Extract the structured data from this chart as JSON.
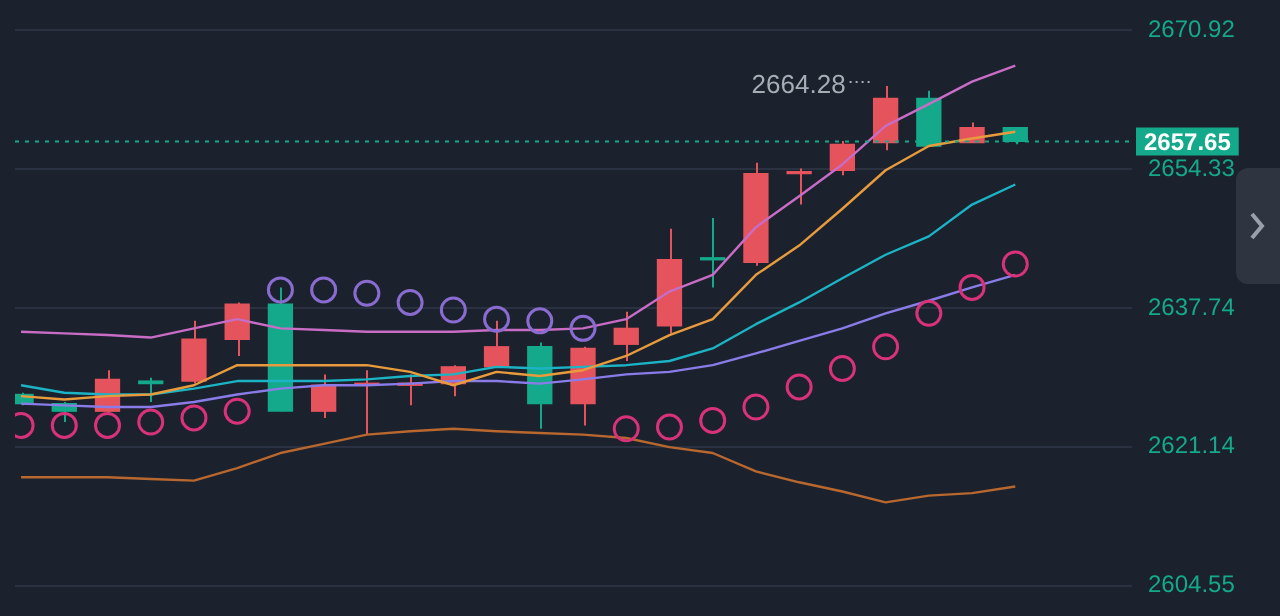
{
  "chart_data": {
    "type": "candlestick",
    "categories": [
      null,
      null,
      null,
      null,
      null,
      null,
      null,
      null,
      null,
      null,
      null,
      null,
      null,
      null,
      null,
      null,
      null,
      null,
      null,
      null,
      null,
      null,
      null,
      null
    ],
    "ohlc": [
      [
        2627.4,
        2627.6,
        2626.1,
        2626.3
      ],
      [
        2626.3,
        2626.5,
        2624.1,
        2625.4
      ],
      [
        2625.4,
        2630.3,
        2625.2,
        2629.2
      ],
      [
        2629.0,
        2629.4,
        2626.5,
        2628.7
      ],
      [
        2629.0,
        2636.2,
        2628.7,
        2634.0
      ],
      [
        2634.0,
        2638.4,
        2632.0,
        2638.2
      ],
      [
        2638.2,
        2640.2,
        2625.4,
        2625.4
      ],
      [
        2625.4,
        2629.8,
        2624.6,
        2628.5
      ],
      [
        2628.5,
        2630.3,
        2622.6,
        2628.7
      ],
      [
        2628.5,
        2629.8,
        2626.1,
        2628.7
      ],
      [
        2628.7,
        2630.9,
        2627.2,
        2630.7
      ],
      [
        2630.7,
        2636.2,
        2630.7,
        2633.1
      ],
      [
        2633.1,
        2633.6,
        2623.3,
        2626.3
      ],
      [
        2626.3,
        2633.1,
        2623.7,
        2632.9
      ],
      [
        2633.4,
        2637.3,
        2631.4,
        2635.3
      ],
      [
        2635.6,
        2647.2,
        2634.7,
        2643.5
      ],
      [
        2643.7,
        2648.5,
        2640.2,
        2643.5
      ],
      [
        2643.2,
        2655.1,
        2642.8,
        2653.8
      ],
      [
        2653.8,
        2654.4,
        2650.1,
        2654.0
      ],
      [
        2654.2,
        2657.7,
        2653.6,
        2657.3
      ],
      [
        2657.5,
        2664.28,
        2656.6,
        2662.8
      ],
      [
        2662.8,
        2663.7,
        2657.1,
        2657.1
      ],
      [
        2657.5,
        2659.9,
        2657.5,
        2659.3
      ],
      [
        2659.3,
        2659.3,
        2657.3,
        2657.65
      ]
    ],
    "colors": [
      "#14a98a",
      "#14a98a",
      "#e5535d",
      "#14a98a",
      "#e5535d",
      "#e5535d",
      "#14a98a",
      "#e5535d",
      "#e5535d",
      "#e5535d",
      "#e5535d",
      "#e5535d",
      "#14a98a",
      "#e5535d",
      "#e5535d",
      "#e5535d",
      "#14a98a",
      "#e5535d",
      "#e5535d",
      "#e5535d",
      "#e5535d",
      "#14a98a",
      "#e5535d",
      "#14a98a"
    ],
    "series": [
      {
        "type": "line",
        "color": "#c86cc6",
        "values": [
          2634.9,
          2634.7,
          2634.5,
          2634.2,
          2635.3,
          2636.4,
          2635.3,
          2635.1,
          2634.9,
          2634.9,
          2634.9,
          2635.1,
          2635.1,
          2635.3,
          2636.4,
          2639.7,
          2641.7,
          2647.4,
          2651.1,
          2654.9,
          2659.5,
          2662.1,
          2664.8,
          2666.7
        ]
      },
      {
        "type": "line",
        "color": "#e89b3c",
        "values": [
          2627.2,
          2626.8,
          2627.2,
          2627.4,
          2628.5,
          2630.9,
          2630.9,
          2630.9,
          2630.9,
          2630.1,
          2628.5,
          2630.1,
          2629.6,
          2630.3,
          2632.0,
          2634.5,
          2636.4,
          2641.7,
          2645.2,
          2649.6,
          2654.2,
          2657.1,
          2658.0,
          2658.8
        ]
      },
      {
        "type": "line",
        "color": "#1cb3c4",
        "values": [
          2628.5,
          2627.6,
          2627.4,
          2627.4,
          2628.1,
          2629.0,
          2629.0,
          2629.0,
          2629.2,
          2629.6,
          2629.8,
          2630.7,
          2630.5,
          2630.7,
          2630.9,
          2631.4,
          2632.9,
          2635.8,
          2638.4,
          2641.3,
          2644.1,
          2646.3,
          2650.1,
          2652.5
        ]
      },
      {
        "type": "line",
        "color": "#8a7ce8",
        "values": [
          2626.3,
          2626.1,
          2625.9,
          2625.9,
          2626.5,
          2627.4,
          2628.1,
          2628.5,
          2628.5,
          2628.7,
          2629.0,
          2629.0,
          2628.7,
          2629.2,
          2629.8,
          2630.1,
          2630.9,
          2632.3,
          2633.8,
          2635.3,
          2637.1,
          2638.6,
          2640.2,
          2641.7
        ]
      },
      {
        "type": "line",
        "color": "#b8672e",
        "values": [
          2617.5,
          2617.5,
          2617.5,
          2617.3,
          2617.1,
          2618.6,
          2620.4,
          2621.5,
          2622.6,
          2623.0,
          2623.3,
          2623.0,
          2622.8,
          2622.6,
          2622.2,
          2621.1,
          2620.4,
          2618.2,
          2616.9,
          2615.8,
          2614.5,
          2615.3,
          2615.6,
          2616.4
        ]
      },
      {
        "type": "scatter",
        "marker": "circle",
        "colors": [
          "#d8327a",
          "#d8327a",
          "#d8327a",
          "#d8327a",
          "#d8327a",
          "#d8327a",
          "#8a6cd0",
          "#8a6cd0",
          "#8a6cd0",
          "#8a6cd0",
          "#8a6cd0",
          "#8a6cd0",
          "#8a6cd0",
          "#8a6cd0",
          "#d8327a",
          "#d8327a",
          "#d8327a",
          "#d8327a",
          "#d8327a",
          "#d8327a",
          "#d8327a",
          "#d8327a",
          "#d8327a",
          "#d8327a"
        ],
        "values": [
          2623.7,
          2623.7,
          2623.7,
          2624.1,
          2624.6,
          2625.4,
          2639.9,
          2639.9,
          2639.5,
          2638.4,
          2637.5,
          2636.4,
          2636.2,
          2635.3,
          2623.3,
          2623.5,
          2624.3,
          2625.9,
          2628.3,
          2630.5,
          2633.1,
          2637.1,
          2640.2,
          2643.0
        ]
      }
    ],
    "ylim": [
      2604.55,
      2670.92
    ],
    "yticks": [
      2604.55,
      2621.14,
      2637.74,
      2654.33,
      2670.92
    ],
    "grid": "y",
    "legend": false,
    "ref_lines": [
      {
        "axis": "y",
        "value": 2657.65,
        "label": "2657.65",
        "color": "#14a98a",
        "line_style": "dotted"
      }
    ],
    "annotations": [
      "2664.28"
    ]
  }
}
